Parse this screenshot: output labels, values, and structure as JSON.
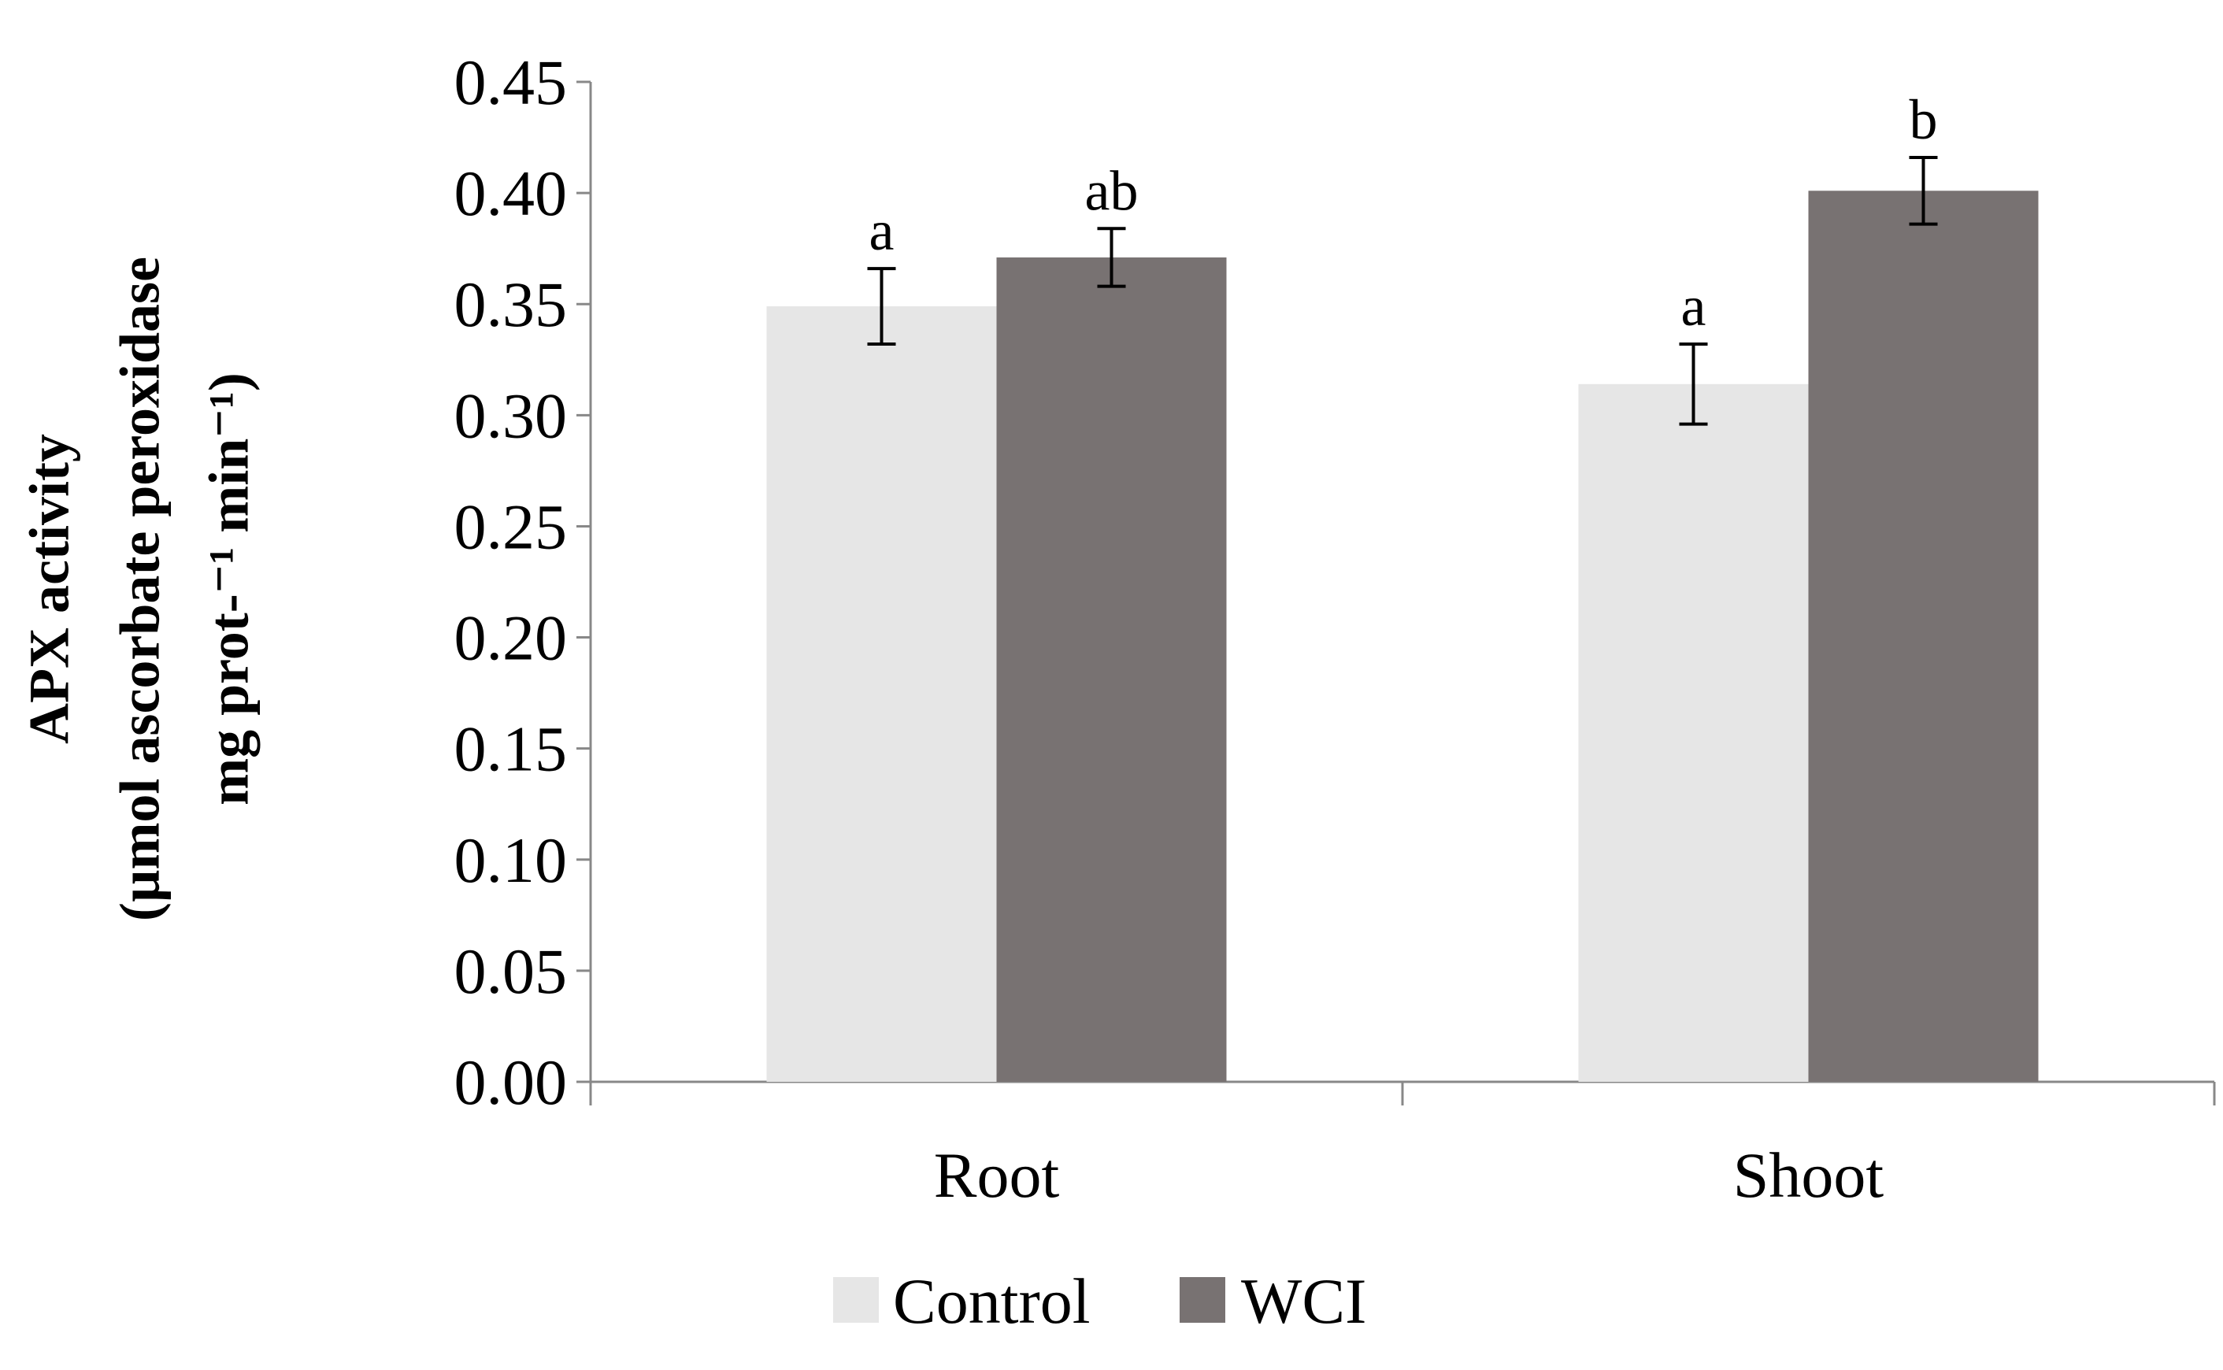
{
  "chart_data": {
    "type": "bar",
    "categories": [
      "Root",
      "Shoot"
    ],
    "series": [
      {
        "name": "Control",
        "color": "#e6e6e6",
        "values": [
          0.349,
          0.314
        ],
        "errors": [
          0.017,
          0.018
        ],
        "significance": [
          "a",
          "a"
        ]
      },
      {
        "name": "WCI",
        "color": "#787272",
        "values": [
          0.371,
          0.401
        ],
        "errors": [
          0.013,
          0.015
        ],
        "significance": [
          "ab",
          "b"
        ]
      }
    ],
    "ylim": [
      0,
      0.45
    ],
    "yticks": [
      "0.00",
      "0.05",
      "0.10",
      "0.15",
      "0.20",
      "0.25",
      "0.30",
      "0.35",
      "0.40",
      "0.45"
    ],
    "ylabel_lines": [
      "APX activity",
      "(µmol ascorbate peroxidase",
      "mg prot-⁻¹ min⁻¹)"
    ],
    "xlabel": "",
    "title": "",
    "grid": false,
    "legend_position": "bottom-center"
  }
}
